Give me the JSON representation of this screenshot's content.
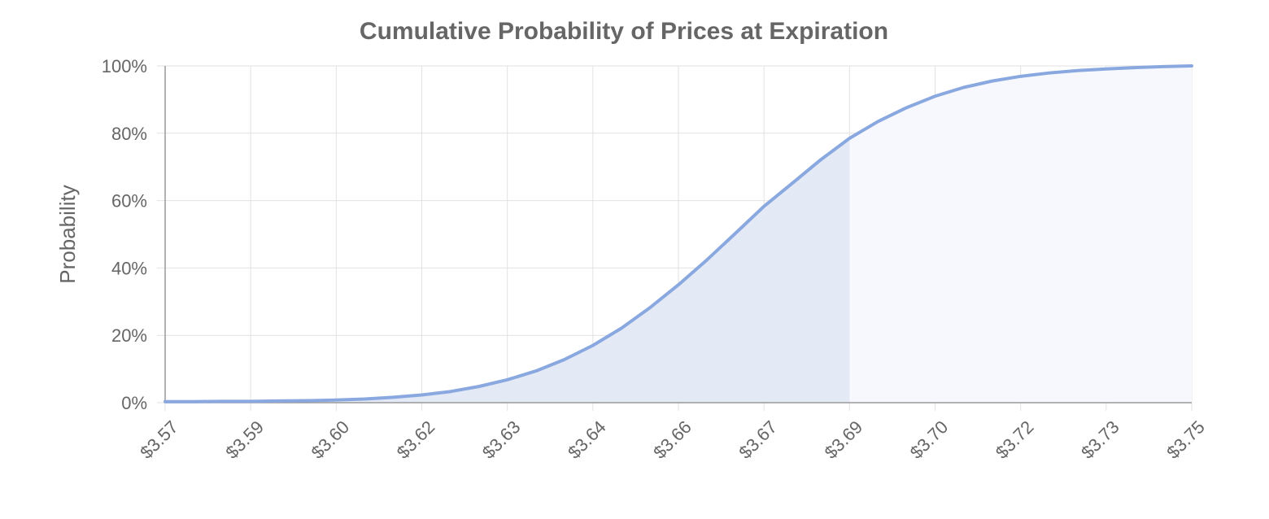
{
  "chart_data": {
    "type": "area",
    "title": "Cumulative Probability of Prices at Expiration",
    "xlabel": "",
    "ylabel": "Probability",
    "x_tick_labels": [
      "$3.57",
      "$3.59",
      "$3.60",
      "$3.62",
      "$3.63",
      "$3.64",
      "$3.66",
      "$3.67",
      "$3.69",
      "$3.70",
      "$3.72",
      "$3.73",
      "$3.75"
    ],
    "y_tick_labels": [
      "0%",
      "20%",
      "40%",
      "60%",
      "80%",
      "100%"
    ],
    "ylim": [
      0,
      100
    ],
    "xlim": [
      3.57,
      3.75
    ],
    "grid": true,
    "highlight_until_x": 3.69,
    "series": [
      {
        "values": [
          {
            "x": 3.57,
            "y": 0.3
          },
          {
            "x": 3.575,
            "y": 0.3
          },
          {
            "x": 3.58,
            "y": 0.4
          },
          {
            "x": 3.585,
            "y": 0.4
          },
          {
            "x": 3.59,
            "y": 0.5
          },
          {
            "x": 3.595,
            "y": 0.6
          },
          {
            "x": 3.6,
            "y": 0.8
          },
          {
            "x": 3.605,
            "y": 1.1
          },
          {
            "x": 3.61,
            "y": 1.6
          },
          {
            "x": 3.615,
            "y": 2.3
          },
          {
            "x": 3.62,
            "y": 3.3
          },
          {
            "x": 3.625,
            "y": 4.8
          },
          {
            "x": 3.63,
            "y": 6.8
          },
          {
            "x": 3.635,
            "y": 9.4
          },
          {
            "x": 3.64,
            "y": 12.8
          },
          {
            "x": 3.645,
            "y": 17.0
          },
          {
            "x": 3.65,
            "y": 22.1
          },
          {
            "x": 3.655,
            "y": 28.2
          },
          {
            "x": 3.66,
            "y": 35.0
          },
          {
            "x": 3.665,
            "y": 42.4
          },
          {
            "x": 3.67,
            "y": 50.3
          },
          {
            "x": 3.675,
            "y": 58.3
          },
          {
            "x": 3.68,
            "y": 65.2
          },
          {
            "x": 3.685,
            "y": 72.2
          },
          {
            "x": 3.69,
            "y": 78.5
          },
          {
            "x": 3.695,
            "y": 83.5
          },
          {
            "x": 3.7,
            "y": 87.6
          },
          {
            "x": 3.705,
            "y": 91.0
          },
          {
            "x": 3.71,
            "y": 93.6
          },
          {
            "x": 3.715,
            "y": 95.5
          },
          {
            "x": 3.72,
            "y": 96.9
          },
          {
            "x": 3.725,
            "y": 97.9
          },
          {
            "x": 3.73,
            "y": 98.6
          },
          {
            "x": 3.735,
            "y": 99.1
          },
          {
            "x": 3.74,
            "y": 99.5
          },
          {
            "x": 3.745,
            "y": 99.8
          },
          {
            "x": 3.75,
            "y": 100.0
          }
        ]
      }
    ],
    "colors": {
      "line": "#8aa8e0",
      "fill_highlight": "#e3e9f5",
      "fill_rest": "#f6f8fd",
      "grid": "#e2e2e2",
      "axis": "#999999",
      "text": "#666666"
    }
  }
}
